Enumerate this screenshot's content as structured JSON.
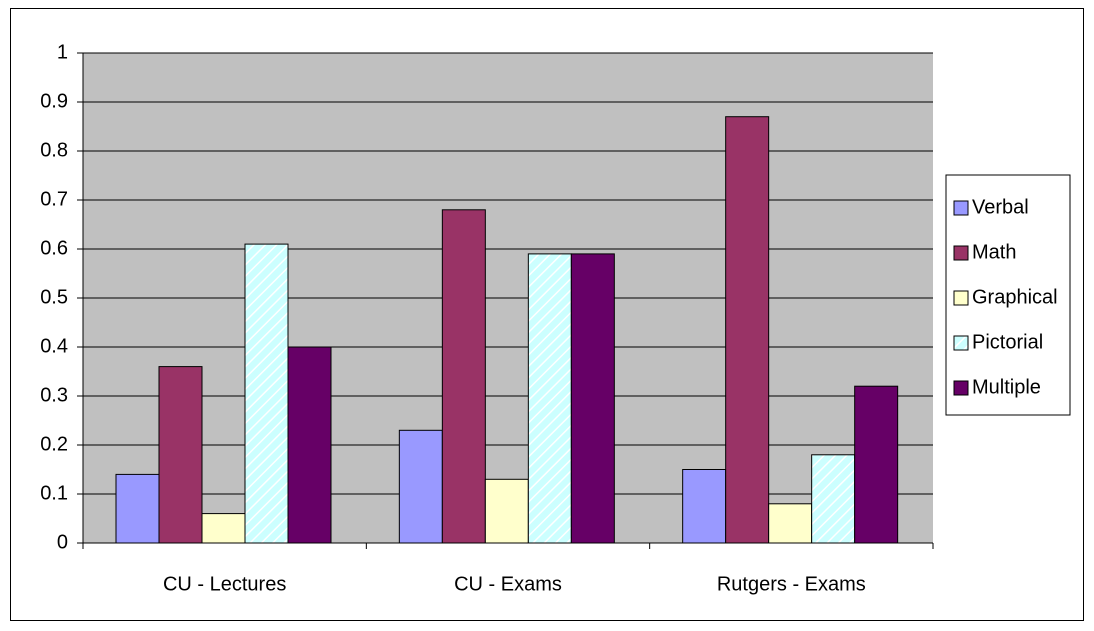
{
  "chart_data": {
    "type": "bar",
    "categories": [
      "CU - Lectures",
      "CU - Exams",
      "Rutgers - Exams"
    ],
    "series": [
      {
        "name": "Verbal",
        "color": "#9999ff",
        "values": [
          0.14,
          0.23,
          0.15
        ]
      },
      {
        "name": "Math",
        "color": "#993366",
        "values": [
          0.36,
          0.68,
          0.87
        ]
      },
      {
        "name": "Graphical",
        "color": "#ffffcc",
        "values": [
          0.06,
          0.13,
          0.08
        ]
      },
      {
        "name": "Pictorial",
        "color": "#ccffff",
        "hatch": true,
        "values": [
          0.61,
          0.59,
          0.18
        ]
      },
      {
        "name": "Multiple",
        "color": "#660066",
        "values": [
          0.4,
          0.59,
          0.32
        ]
      }
    ],
    "ylim": [
      0,
      1
    ],
    "yticks": [
      0,
      0.1,
      0.2,
      0.3,
      0.4,
      0.5,
      0.6,
      0.7,
      0.8,
      0.9,
      1
    ],
    "grid": true,
    "legend": "right",
    "plot_background": "#c0c0c0"
  }
}
